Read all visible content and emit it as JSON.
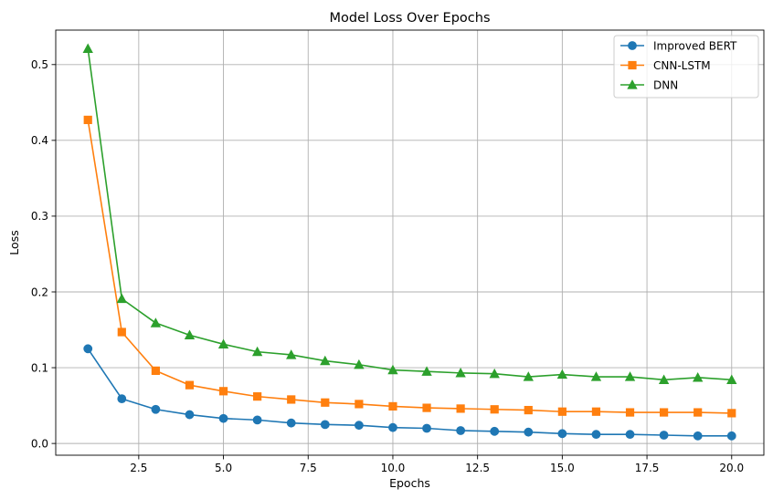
{
  "chart_data": {
    "type": "line",
    "title": "Model Loss Over Epochs",
    "xlabel": "Epochs",
    "ylabel": "Loss",
    "xlim": [
      0.05,
      20.95
    ],
    "ylim": [
      -0.0155,
      0.5455
    ],
    "x_ticks": [
      2.5,
      5.0,
      7.5,
      10.0,
      12.5,
      15.0,
      17.5,
      20.0
    ],
    "x_tick_labels": [
      "2.5",
      "5.0",
      "7.5",
      "10.0",
      "12.5",
      "15.0",
      "17.5",
      "20.0"
    ],
    "y_ticks": [
      0.0,
      0.1,
      0.2,
      0.3,
      0.4,
      0.5
    ],
    "y_tick_labels": [
      "0.0",
      "0.1",
      "0.2",
      "0.3",
      "0.4",
      "0.5"
    ],
    "grid": true,
    "legend_position": "top-right",
    "x": [
      1,
      2,
      3,
      4,
      5,
      6,
      7,
      8,
      9,
      10,
      11,
      12,
      13,
      14,
      15,
      16,
      17,
      18,
      19,
      20
    ],
    "series": [
      {
        "name": "Improved BERT",
        "color": "#1f77b4",
        "marker": "circle",
        "values": [
          0.125,
          0.059,
          0.045,
          0.038,
          0.033,
          0.031,
          0.027,
          0.025,
          0.024,
          0.021,
          0.02,
          0.017,
          0.016,
          0.015,
          0.013,
          0.012,
          0.012,
          0.011,
          0.01,
          0.01
        ]
      },
      {
        "name": "CNN-LSTM",
        "color": "#ff7f0e",
        "marker": "square",
        "values": [
          0.427,
          0.147,
          0.096,
          0.077,
          0.069,
          0.062,
          0.058,
          0.054,
          0.052,
          0.049,
          0.047,
          0.046,
          0.045,
          0.044,
          0.042,
          0.042,
          0.041,
          0.041,
          0.041,
          0.04
        ]
      },
      {
        "name": "DNN",
        "color": "#2ca02c",
        "marker": "triangle",
        "values": [
          0.521,
          0.191,
          0.159,
          0.143,
          0.131,
          0.121,
          0.117,
          0.109,
          0.104,
          0.097,
          0.095,
          0.093,
          0.092,
          0.088,
          0.091,
          0.088,
          0.088,
          0.084,
          0.087,
          0.084
        ]
      }
    ]
  }
}
